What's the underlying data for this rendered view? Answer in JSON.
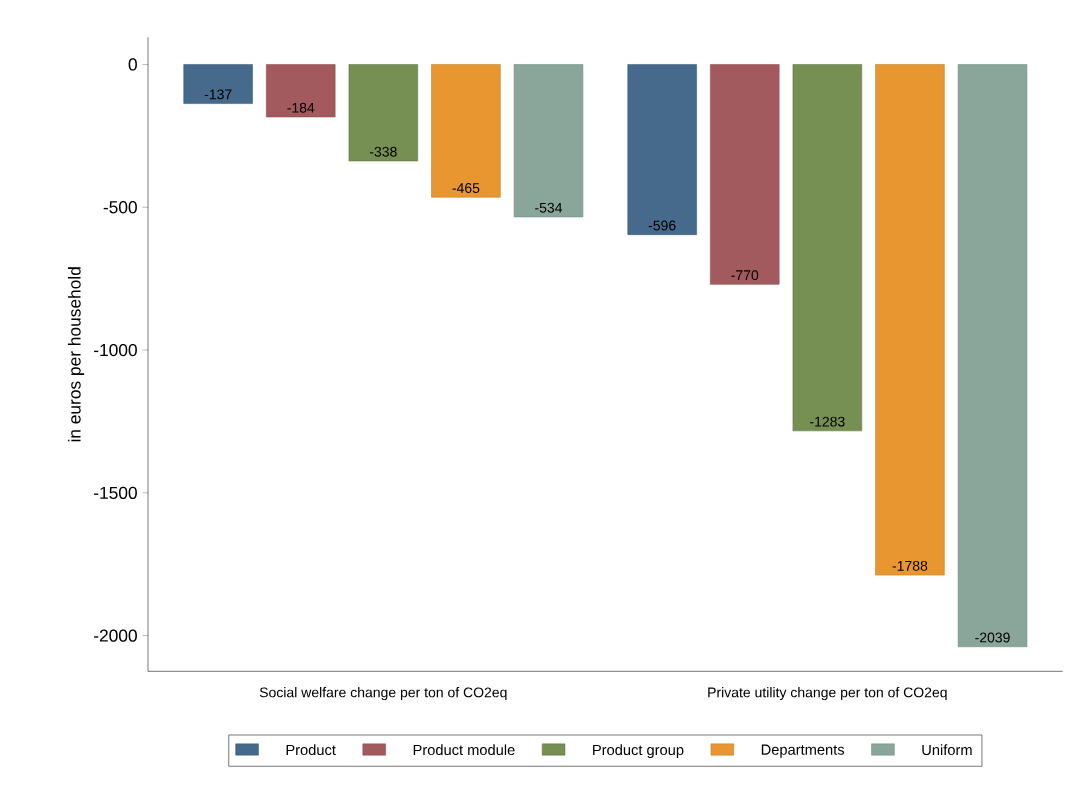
{
  "chart_data": {
    "type": "bar",
    "ylabel": "in euros per household",
    "categories": [
      "Social welfare change per ton of CO2eq",
      "Private utility change per ton of CO2eq"
    ],
    "series": [
      {
        "name": "Product",
        "color": "#456a8c",
        "values": [
          -137,
          -596
        ]
      },
      {
        "name": "Product module",
        "color": "#a35a5e",
        "values": [
          -184,
          -770
        ]
      },
      {
        "name": "Product group",
        "color": "#768f52",
        "values": [
          -338,
          -1283
        ]
      },
      {
        "name": "Departments",
        "color": "#e8962f",
        "values": [
          -465,
          -1788
        ]
      },
      {
        "name": "Uniform",
        "color": "#8aa69b",
        "values": [
          -534,
          -2039
        ]
      }
    ],
    "ylim": [
      -2125,
      95
    ],
    "yticks": [
      0,
      -500,
      -1000,
      -1500,
      -2000
    ],
    "data_labels": true,
    "legend": "bottom",
    "grid": false
  }
}
